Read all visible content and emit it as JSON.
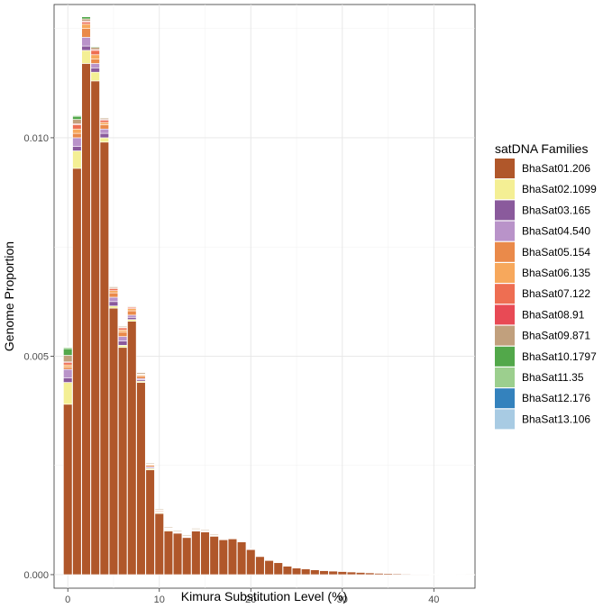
{
  "chart_data": {
    "type": "bar",
    "stacked": true,
    "xlabel": "Kimura Substitution Level (%)",
    "ylabel": "Genome Proportion",
    "xlim": [
      -1.5,
      44.5
    ],
    "ylim": [
      -0.00031,
      0.01305
    ],
    "x_ticks": [
      0,
      10,
      20,
      30,
      40
    ],
    "y_ticks": [
      0.0,
      0.005,
      0.01
    ],
    "y_tick_labels": [
      "0.000",
      "0.005",
      "0.010"
    ],
    "grid": true,
    "legend": {
      "title": "satDNA Families",
      "position": "right"
    },
    "x": [
      0,
      1,
      2,
      3,
      4,
      5,
      6,
      7,
      8,
      9,
      10,
      11,
      12,
      13,
      14,
      15,
      16,
      17,
      18,
      19,
      20,
      21,
      22,
      23,
      24,
      25,
      26,
      27,
      28,
      29,
      30,
      31,
      32,
      33,
      34,
      35,
      36,
      37,
      38,
      39,
      40,
      41,
      42,
      43,
      44
    ],
    "series": [
      {
        "name": "BhaSat01.206",
        "color": "#b0572a",
        "values": [
          0.0039,
          0.0093,
          0.0117,
          0.0113,
          0.0099,
          0.0061,
          0.0052,
          0.0058,
          0.0044,
          0.0024,
          0.0014,
          0.001,
          0.00095,
          0.00085,
          0.001,
          0.00098,
          0.00088,
          0.0008,
          0.00082,
          0.00075,
          0.00058,
          0.00042,
          0.00033,
          0.00028,
          0.0002,
          0.00015,
          0.00013,
          0.00011,
          9e-05,
          8e-05,
          7e-05,
          6e-05,
          5e-05,
          4e-05,
          3e-05,
          2.5e-05,
          2e-05,
          1.5e-05,
          1e-05,
          1e-05,
          8e-06,
          5e-06,
          4e-06,
          3e-06,
          2e-06
        ]
      },
      {
        "name": "BhaSat02.1099",
        "color": "#f4ef94",
        "values": [
          0.0005,
          0.0004,
          0.0003,
          0.0002,
          0.0001,
          5e-05,
          5e-05,
          4e-05,
          3e-05,
          3e-05,
          2e-05,
          2e-05,
          1e-05,
          1e-05,
          1e-05,
          1e-05,
          1e-05,
          1e-05,
          1e-05,
          1e-05,
          5e-06,
          5e-06,
          5e-06,
          0,
          0,
          0,
          0,
          0,
          0,
          0,
          0,
          0,
          0,
          0,
          0,
          0,
          0,
          0,
          0,
          0,
          0,
          0,
          0,
          0,
          0
        ]
      },
      {
        "name": "BhaSat03.165",
        "color": "#8a5a9c",
        "values": [
          0.0001,
          0.0001,
          0.0001,
          0.0001,
          0.0001,
          0.0001,
          0.0001,
          5e-05,
          3e-05,
          2e-05,
          1e-05,
          1e-05,
          1e-05,
          5e-06,
          5e-06,
          5e-06,
          0,
          0,
          0,
          0,
          0,
          0,
          0,
          0,
          0,
          0,
          0,
          0,
          0,
          0,
          0,
          0,
          0,
          0,
          0,
          0,
          0,
          0,
          0,
          0,
          0,
          0,
          0,
          0,
          0
        ]
      },
      {
        "name": "BhaSat04.540",
        "color": "#b993c9",
        "values": [
          0.0002,
          0.0002,
          0.0002,
          0.0001,
          0.0001,
          0.0001,
          0.0001,
          5e-05,
          3e-05,
          2e-05,
          1e-05,
          1e-05,
          5e-06,
          5e-06,
          5e-06,
          5e-06,
          0,
          0,
          0,
          0,
          0,
          0,
          0,
          0,
          0,
          0,
          0,
          0,
          0,
          0,
          0,
          0,
          0,
          0,
          0,
          0,
          0,
          0,
          0,
          0,
          0,
          0,
          0,
          0,
          0
        ]
      },
      {
        "name": "BhaSat05.154",
        "color": "#ea8a4a",
        "values": [
          5e-05,
          0.0001,
          0.0002,
          0.0001,
          0.0001,
          0.0001,
          0.0001,
          0.0001,
          5e-05,
          3e-05,
          2e-05,
          1e-05,
          1e-05,
          1e-05,
          1e-05,
          1e-05,
          1e-05,
          1e-05,
          5e-06,
          5e-06,
          5e-06,
          0,
          0,
          0,
          0,
          0,
          0,
          0,
          0,
          0,
          0,
          0,
          0,
          0,
          0,
          0,
          0,
          0,
          0,
          0,
          0,
          0,
          0,
          0,
          0
        ]
      },
      {
        "name": "BhaSat06.135",
        "color": "#f7a85c",
        "values": [
          5e-05,
          0.0001,
          0.0001,
          0.0001,
          5e-05,
          5e-05,
          5e-05,
          5e-05,
          3e-05,
          2e-05,
          1e-05,
          1e-05,
          5e-06,
          5e-06,
          5e-06,
          5e-06,
          5e-06,
          0,
          0,
          0,
          0,
          0,
          0,
          0,
          0,
          0,
          0,
          0,
          0,
          0,
          0,
          0,
          0,
          0,
          0,
          0,
          0,
          0,
          0,
          0,
          0,
          0,
          0,
          0,
          0
        ]
      },
      {
        "name": "BhaSat07.122",
        "color": "#ee6e52",
        "values": [
          5e-05,
          0.0001,
          5e-05,
          0.0001,
          5e-05,
          5e-05,
          5e-05,
          3e-05,
          2e-05,
          1e-05,
          1e-05,
          5e-06,
          5e-06,
          5e-06,
          5e-06,
          0,
          0,
          0,
          0,
          0,
          0,
          0,
          0,
          0,
          0,
          0,
          0,
          0,
          0,
          0,
          0,
          0,
          0,
          0,
          0,
          0,
          0,
          0,
          0,
          0,
          0,
          0,
          0,
          0,
          0
        ]
      },
      {
        "name": "BhaSat08.91",
        "color": "#e84a55",
        "values": [
          2e-05,
          2e-05,
          2e-05,
          2e-05,
          2e-05,
          1e-05,
          1e-05,
          1e-05,
          5e-06,
          0,
          0,
          0,
          0,
          0,
          0,
          0,
          0,
          0,
          0,
          0,
          0,
          0,
          0,
          0,
          0,
          0,
          0,
          0,
          0,
          0,
          0,
          0,
          0,
          0,
          0,
          0,
          0,
          0,
          0,
          0,
          0,
          0,
          0,
          0,
          0
        ]
      },
      {
        "name": "BhaSat09.871",
        "color": "#c1a07d",
        "values": [
          0.00015,
          0.0001,
          5e-05,
          5e-05,
          3e-05,
          3e-05,
          3e-05,
          2e-05,
          3e-05,
          2e-05,
          2e-05,
          2e-05,
          2e-05,
          2e-05,
          2e-05,
          2e-05,
          2e-05,
          1e-05,
          1e-05,
          1e-05,
          1e-05,
          5e-06,
          5e-06,
          5e-06,
          5e-06,
          0,
          0,
          0,
          0,
          0,
          0,
          0,
          0,
          0,
          0,
          0,
          0,
          0,
          0,
          0,
          0,
          0,
          0,
          0,
          0
        ]
      },
      {
        "name": "BhaSat10.1797",
        "color": "#52a84a",
        "values": [
          0.00015,
          7e-05,
          5e-05,
          2e-05,
          1e-05,
          1e-05,
          5e-06,
          5e-06,
          0,
          0,
          0,
          0,
          0,
          0,
          0,
          0,
          0,
          0,
          0,
          0,
          0,
          0,
          0,
          0,
          0,
          0,
          0,
          0,
          0,
          0,
          0,
          0,
          0,
          0,
          0,
          0,
          0,
          0,
          0,
          0,
          0,
          0,
          0,
          0,
          0
        ]
      },
      {
        "name": "BhaSat11.35",
        "color": "#9ccf8e",
        "values": [
          3e-05,
          2e-05,
          1e-05,
          1e-05,
          5e-06,
          0,
          0,
          0,
          0,
          0,
          0,
          0,
          0,
          0,
          0,
          0,
          0,
          0,
          0,
          0,
          0,
          0,
          0,
          0,
          0,
          0,
          0,
          0,
          0,
          0,
          0,
          0,
          0,
          0,
          0,
          0,
          0,
          0,
          0,
          0,
          0,
          0,
          0,
          0,
          0
        ]
      },
      {
        "name": "BhaSat12.176",
        "color": "#3482bd",
        "values": [
          1e-05,
          1e-05,
          5e-06,
          5e-06,
          0,
          0,
          0,
          0,
          0,
          0,
          0,
          0,
          0,
          0,
          0,
          0,
          0,
          0,
          0,
          0,
          0,
          0,
          0,
          0,
          0,
          0,
          0,
          0,
          0,
          0,
          0,
          0,
          0,
          0,
          0,
          0,
          0,
          0,
          0,
          0,
          0,
          0,
          0,
          0,
          0
        ]
      },
      {
        "name": "BhaSat13.106",
        "color": "#a8cbe3",
        "values": [
          1e-05,
          1e-05,
          5e-06,
          5e-06,
          0,
          0,
          0,
          0,
          0,
          0,
          0,
          0,
          0,
          0,
          0,
          0,
          0,
          0,
          0,
          0,
          0,
          0,
          0,
          0,
          0,
          0,
          0,
          0,
          0,
          0,
          0,
          0,
          0,
          0,
          0,
          0,
          0,
          0,
          0,
          0,
          0,
          0,
          0,
          0,
          0
        ]
      }
    ]
  }
}
